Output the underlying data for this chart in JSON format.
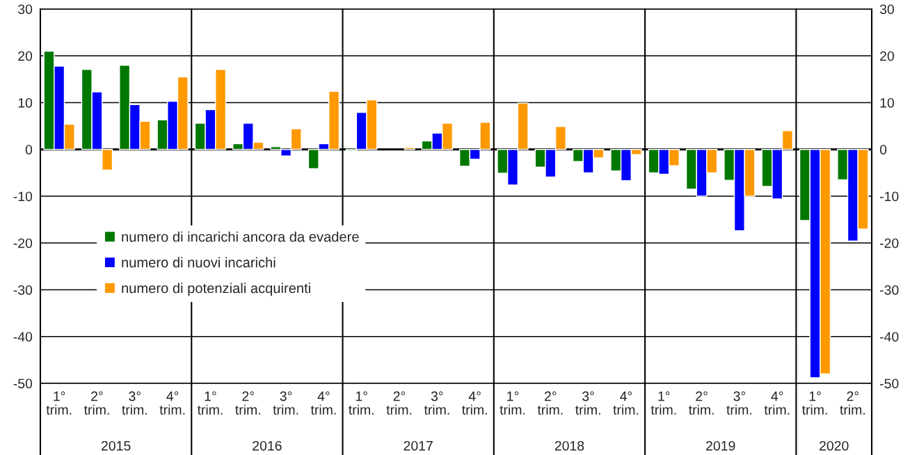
{
  "chart_data": {
    "type": "bar",
    "categories": [
      "1°\ntrim.",
      "2°\ntrim.",
      "3°\ntrim.",
      "4°\ntrim.",
      "1°\ntrim.",
      "2°\ntrim.",
      "3°\ntrim.",
      "4°\ntrim.",
      "1°\ntrim.",
      "2°\ntrim.",
      "3°\ntrim.",
      "4°\ntrim.",
      "1°\ntrim.",
      "2°\ntrim.",
      "3°\ntrim.",
      "4°\ntrim.",
      "1°\ntrim.",
      "2°\ntrim.",
      "3°\ntrim.",
      "4°\ntrim.",
      "1°\ntrim.",
      "2°\ntrim."
    ],
    "series": [
      {
        "name": "numero di incarichi ancora da evadere",
        "color": "#007800",
        "values": [
          21,
          17.1,
          18,
          6.3,
          5.6,
          1.2,
          0.6,
          -4.1,
          -0.3,
          null,
          1.8,
          -3.6,
          -5.1,
          -3.8,
          -2.6,
          -4.6,
          -5,
          -8.5,
          -6.6,
          -7.9,
          -15.2,
          -6.5
        ]
      },
      {
        "name": "numero di nuovi incarichi",
        "color": "#0000ff",
        "values": [
          17.8,
          12.3,
          9.6,
          10.3,
          8.5,
          5.6,
          -1.4,
          1.2,
          7.9,
          null,
          3.5,
          -2.1,
          -7.6,
          -5.9,
          -5,
          -6.7,
          -5.3,
          -10,
          -17.4,
          -10.6,
          -48.8,
          -19.6
        ]
      },
      {
        "name": "numero di potenziali acquirenti",
        "color": "#ff9900",
        "values": [
          5.4,
          -4.4,
          6,
          15.5,
          17.1,
          1.5,
          4.4,
          12.4,
          10.6,
          0.4,
          5.6,
          5.8,
          9.9,
          4.9,
          -1.8,
          -1.1,
          -3.5,
          -5,
          -10,
          4,
          -48,
          -17
        ]
      }
    ],
    "annotations": [
      "2015",
      "2016",
      "2017",
      "2018",
      "2019",
      "2020"
    ],
    "ylim": [
      -50,
      30
    ],
    "yticks": [
      -50,
      -40,
      -30,
      -20,
      -10,
      0,
      10,
      20,
      30
    ],
    "y2lim": [
      -50,
      30
    ],
    "y2ticks": [
      -50,
      -40,
      -30,
      -20,
      -10,
      0,
      10,
      20,
      30
    ],
    "grid": "y",
    "legend": "bottom left"
  }
}
